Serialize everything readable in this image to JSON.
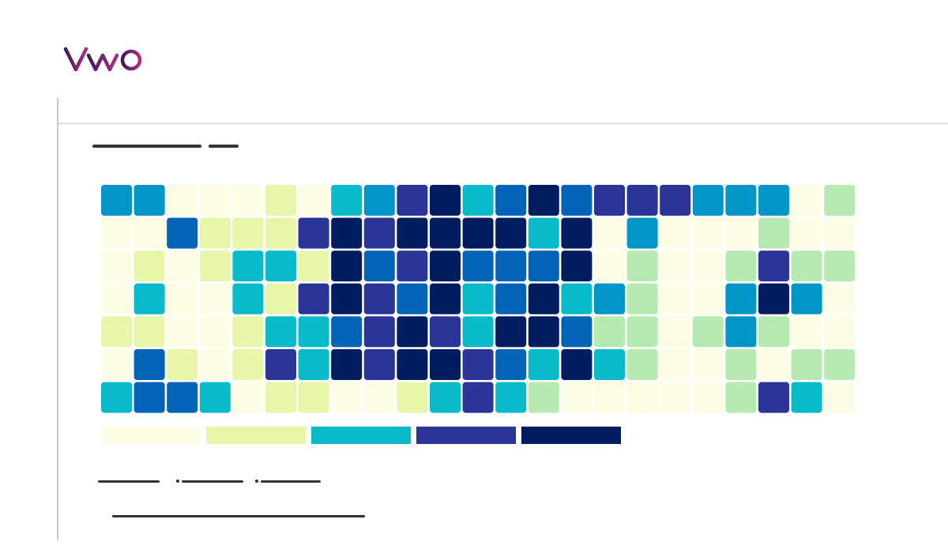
{
  "brand": {
    "name": "VWO",
    "colors": [
      "#3b1d5a",
      "#b12e80"
    ]
  },
  "chart_data": {
    "type": "heatmap",
    "rows": 7,
    "cols": 23,
    "scale": [
      "#fdfde6",
      "#e8f6a9",
      "#b6eab0",
      "#09bac8",
      "#0296c8",
      "#0264b6",
      "#2b3597",
      "#021d5f"
    ],
    "values": [
      [
        4,
        4,
        0,
        0,
        0,
        1,
        0,
        3,
        4,
        6,
        7,
        3,
        5,
        7,
        5,
        6,
        6,
        6,
        4,
        4,
        4,
        0,
        2
      ],
      [
        0,
        0,
        5,
        1,
        1,
        1,
        6,
        7,
        6,
        7,
        7,
        7,
        7,
        3,
        7,
        0,
        4,
        0,
        0,
        0,
        2,
        0,
        0
      ],
      [
        0,
        1,
        0,
        1,
        3,
        3,
        1,
        7,
        5,
        6,
        7,
        5,
        5,
        5,
        7,
        0,
        2,
        0,
        0,
        2,
        6,
        2,
        2
      ],
      [
        0,
        3,
        0,
        0,
        3,
        1,
        6,
        7,
        6,
        5,
        7,
        3,
        5,
        7,
        3,
        4,
        2,
        0,
        0,
        4,
        7,
        4,
        0
      ],
      [
        1,
        1,
        0,
        0,
        1,
        3,
        3,
        5,
        6,
        7,
        6,
        3,
        7,
        7,
        5,
        2,
        2,
        0,
        2,
        4,
        2,
        0,
        0
      ],
      [
        0,
        5,
        1,
        0,
        1,
        6,
        3,
        7,
        6,
        7,
        7,
        6,
        5,
        3,
        7,
        3,
        2,
        0,
        0,
        2,
        0,
        2,
        2
      ],
      [
        3,
        5,
        5,
        3,
        0,
        1,
        1,
        0,
        0,
        1,
        3,
        6,
        3,
        2,
        0,
        0,
        0,
        0,
        0,
        2,
        6,
        3,
        0
      ]
    ],
    "legend_colors": [
      "#fdfde6",
      "#e8f6a9",
      "#09bac8",
      "#2b3597",
      "#021d5f"
    ]
  }
}
